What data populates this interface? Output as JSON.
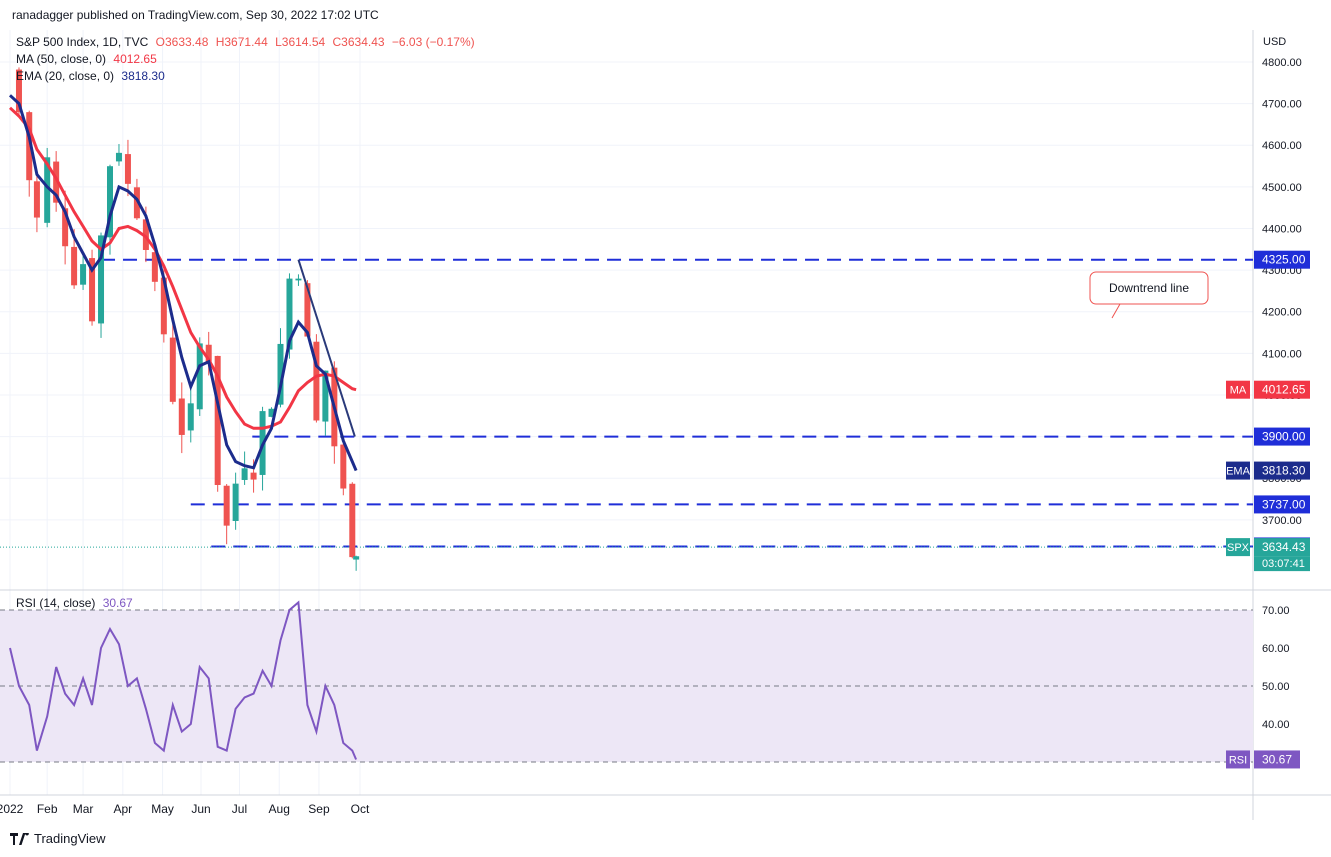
{
  "publisher": "ranadagger published on TradingView.com, Sep 30, 2022 17:02 UTC",
  "legend": {
    "symbol": "S&P 500 Index, 1D, TVC",
    "open": "O3633.48",
    "high": "H3671.44",
    "low": "L3614.54",
    "close": "C3634.43",
    "change": "−6.03 (−0.17%)",
    "ma_label": "MA (50, close, 0)",
    "ma_value": "4012.65",
    "ema_label": "EMA (20, close, 0)",
    "ema_value": "3818.30",
    "rsi_label": "RSI (14, close)",
    "rsi_value": "30.67"
  },
  "brand": "TradingView",
  "colors": {
    "up": "#26a69a",
    "down": "#ef5350",
    "ma": "#f23645",
    "ema": "#1c2c8c",
    "level_line": "#1f2ed8",
    "trendline": "#2a3a7a",
    "rsi": "#7e57c2",
    "rsi_band": "#ede7f6"
  },
  "chart_data": {
    "type": "candlestick",
    "currency": "USD",
    "price_axis": {
      "ticks": [
        3700,
        3800,
        3900,
        4000,
        4100,
        4200,
        4300,
        4400,
        4500,
        4600,
        4700,
        4800
      ],
      "tick_labels": [
        "3700.00",
        "3800.00",
        "3900.00",
        "4000.00",
        "4100.00",
        "4200.00",
        "4300.00",
        "4400.00",
        "4500.00",
        "4600.00",
        "4700.00",
        "4800.00"
      ]
    },
    "rsi_axis": {
      "ticks": [
        40,
        50,
        60,
        70
      ],
      "tick_labels": [
        "40.00",
        "50.00",
        "60.00",
        "70.00"
      ],
      "bands": [
        30,
        70
      ]
    },
    "x_axis": {
      "labels": [
        "2022",
        "Feb",
        "Mar",
        "Apr",
        "May",
        "Jun",
        "Jul",
        "Aug",
        "Sep",
        "Oct"
      ],
      "label_dates": [
        "2022-01-03",
        "2022-02-01",
        "2022-03-01",
        "2022-04-01",
        "2022-05-02",
        "2022-06-01",
        "2022-07-01",
        "2022-08-01",
        "2022-09-01",
        "2022-10-03"
      ]
    },
    "support_resistance": [
      {
        "label": "4325.00",
        "value": 4325,
        "from": "2022-03-15",
        "to": "2022-09-30"
      },
      {
        "label": "3900.00",
        "value": 3900,
        "from": "2022-07-11",
        "to": "2022-09-30"
      },
      {
        "label": "3737.00",
        "value": 3737,
        "from": "2022-05-24",
        "to": "2022-09-30"
      },
      {
        "label": "3636.00",
        "value": 3636,
        "from": "2022-06-09",
        "to": "2022-09-30"
      }
    ],
    "trendline": {
      "label": "Downtrend line",
      "from": {
        "date": "2022-08-16",
        "value": 4325
      },
      "to": {
        "date": "2022-09-29",
        "value": 3900
      }
    },
    "price_tags": [
      {
        "label": "MA",
        "value": "4012.65"
      },
      {
        "label": "EMA",
        "value": "3818.30"
      },
      {
        "label": "SPX",
        "value": "3634.43",
        "countdown": "03:07:41"
      }
    ],
    "rsi_tag": {
      "label": "RSI",
      "value": "30.67"
    },
    "series": [
      {
        "name": "S&P 500 Index",
        "dates": [
          "2022-01-03",
          "2022-01-10",
          "2022-01-18",
          "2022-01-24",
          "2022-02-01",
          "2022-02-08",
          "2022-02-15",
          "2022-02-22",
          "2022-03-01",
          "2022-03-08",
          "2022-03-15",
          "2022-03-22",
          "2022-03-29",
          "2022-04-05",
          "2022-04-12",
          "2022-04-19",
          "2022-04-26",
          "2022-05-03",
          "2022-05-10",
          "2022-05-17",
          "2022-05-24",
          "2022-05-31",
          "2022-06-07",
          "2022-06-14",
          "2022-06-21",
          "2022-06-28",
          "2022-07-05",
          "2022-07-12",
          "2022-07-19",
          "2022-07-26",
          "2022-08-02",
          "2022-08-09",
          "2022-08-16",
          "2022-08-23",
          "2022-08-30",
          "2022-09-06",
          "2022-09-13",
          "2022-09-20",
          "2022-09-27",
          "2022-09-30"
        ],
        "close": [
          4780,
          4680,
          4520,
          4420,
          4560,
          4450,
          4380,
          4290,
          4320,
          4200,
          4380,
          4560,
          4600,
          4500,
          4450,
          4380,
          4240,
          4150,
          4000,
          3920,
          3950,
          4120,
          4100,
          3800,
          3680,
          3790,
          3850,
          3830,
          3950,
          3990,
          4120,
          4280,
          4310,
          4120,
          3930,
          4060,
          3880,
          3760,
          3640,
          3634.43
        ]
      },
      {
        "name": "MA (50, close, 0)",
        "values": [
          4690,
          4670,
          4640,
          4590,
          4555,
          4520,
          4480,
          4440,
          4405,
          4370,
          4350,
          4365,
          4400,
          4405,
          4395,
          4380,
          4350,
          4310,
          4260,
          4205,
          4150,
          4115,
          4085,
          4045,
          3995,
          3960,
          3930,
          3920,
          3920,
          3925,
          3935,
          3970,
          4010,
          4030,
          4045,
          4050,
          4045,
          4030,
          4015,
          4012.65
        ]
      },
      {
        "name": "EMA (20, close, 0)",
        "values": [
          4720,
          4700,
          4620,
          4530,
          4500,
          4480,
          4440,
          4380,
          4340,
          4300,
          4330,
          4430,
          4500,
          4490,
          4470,
          4430,
          4360,
          4280,
          4180,
          4090,
          4020,
          4070,
          4080,
          3980,
          3880,
          3840,
          3830,
          3825,
          3880,
          3920,
          4020,
          4130,
          4175,
          4150,
          4070,
          4050,
          3970,
          3890,
          3840,
          3818.3
        ]
      },
      {
        "name": "RSI (14, close)",
        "values": [
          60,
          50,
          45,
          33,
          42,
          55,
          48,
          45,
          52,
          45,
          60,
          65,
          61,
          50,
          52,
          44,
          35,
          33,
          45,
          38,
          40,
          55,
          52,
          34,
          33,
          44,
          47,
          48,
          54,
          50,
          62,
          70,
          72,
          45,
          38,
          50,
          45,
          35,
          33,
          30.67
        ]
      }
    ]
  }
}
